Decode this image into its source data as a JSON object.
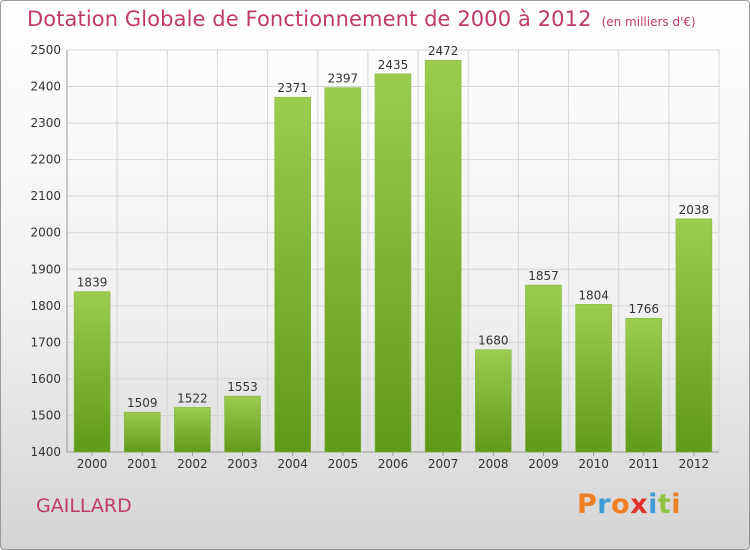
{
  "title": "Dotation Globale de Fonctionnement de 2000 à 2012",
  "unit": "(en milliers d'€)",
  "commune": "GAILLARD",
  "logo": {
    "text": "Proxiti",
    "colors": [
      "#f07f23",
      "#3f9bd6",
      "#f07f23",
      "#e0332b",
      "#3f9bd6",
      "#8cc43f",
      "#f07f23"
    ]
  },
  "colors": {
    "bar_top": "#9ccc4e",
    "bar_bottom": "#5f9a18",
    "title": "#c0396b",
    "grid": "#d6d6d6"
  },
  "chart_data": {
    "type": "bar",
    "categories": [
      "2000",
      "2001",
      "2002",
      "2003",
      "2004",
      "2005",
      "2006",
      "2007",
      "2008",
      "2009",
      "2010",
      "2011",
      "2012"
    ],
    "values": [
      1839,
      1509,
      1522,
      1553,
      2371,
      2397,
      2435,
      2472,
      1680,
      1857,
      1804,
      1766,
      2038
    ],
    "ylim": [
      1400,
      2500
    ],
    "yticks": [
      1400,
      1500,
      1600,
      1700,
      1800,
      1900,
      2000,
      2100,
      2200,
      2300,
      2400,
      2500
    ],
    "grid": true,
    "data_labels": true
  }
}
